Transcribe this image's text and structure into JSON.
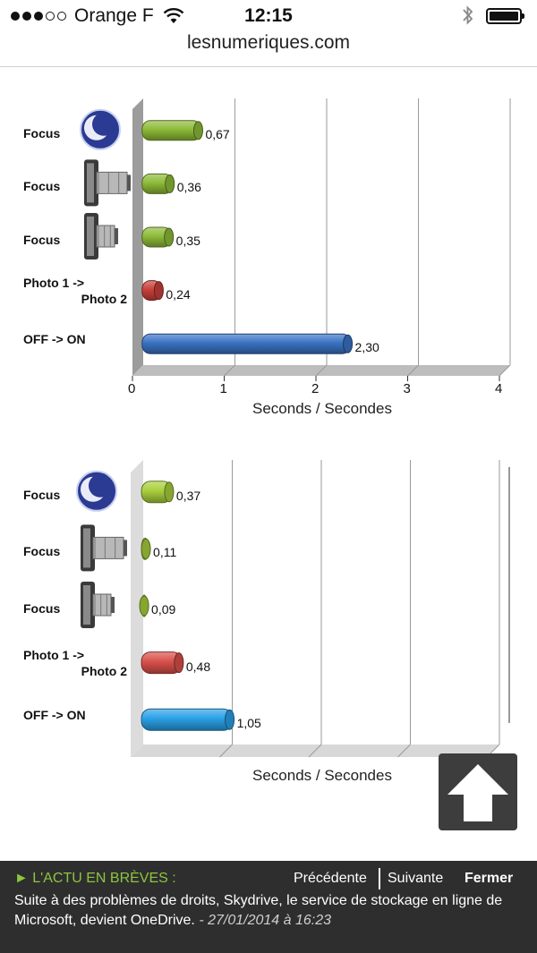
{
  "status_bar": {
    "carrier": "Orange F",
    "time": "12:15",
    "url": "lesnumeriques.com"
  },
  "chart_data": [
    {
      "type": "bar",
      "orientation": "horizontal",
      "title": "",
      "xlabel": "Seconds / Secondes",
      "ylabel": "",
      "xlim": [
        0,
        4
      ],
      "x_ticks": [
        "0",
        "1",
        "2",
        "3",
        "4"
      ],
      "grid": true,
      "categories": [
        {
          "label": "Focus",
          "icon": "moon-icon"
        },
        {
          "label": "Focus",
          "icon": "camera-zoom-tele-icon"
        },
        {
          "label": "Focus",
          "icon": "camera-zoom-wide-icon"
        },
        {
          "label": "Photo 1 ->",
          "label2": "Photo 2",
          "icon": ""
        },
        {
          "label": "OFF -> ON",
          "icon": ""
        }
      ],
      "values": [
        0.67,
        0.36,
        0.35,
        0.24,
        2.3
      ],
      "value_labels": [
        "0,67",
        "0,36",
        "0,35",
        "0,24",
        "2,30"
      ],
      "colors": [
        "#8dbb38",
        "#8dbb38",
        "#8dbb38",
        "#c9403a",
        "#3a73c4"
      ]
    },
    {
      "type": "bar",
      "orientation": "horizontal",
      "title": "",
      "xlabel": "Seconds / Secondes",
      "ylabel": "",
      "xlim": [
        0,
        4
      ],
      "x_ticks": [],
      "grid": true,
      "categories": [
        {
          "label": "Focus",
          "icon": "moon-icon"
        },
        {
          "label": "Focus",
          "icon": "camera-zoom-tele-icon"
        },
        {
          "label": "Focus",
          "icon": "camera-zoom-wide-icon"
        },
        {
          "label": "Photo 1 ->",
          "label2": "Photo 2",
          "icon": ""
        },
        {
          "label": "OFF -> ON",
          "icon": ""
        }
      ],
      "values": [
        0.37,
        0.11,
        0.09,
        0.48,
        1.05
      ],
      "value_labels": [
        "0,37",
        "0,11",
        "0,09",
        "0,48",
        "1,05"
      ],
      "colors": [
        "#a9cf3c",
        "#a9cf3c",
        "#a9cf3c",
        "#d9504a",
        "#2aa0e6"
      ]
    }
  ],
  "news": {
    "kicker": "► L'ACTU EN BRÈVES :",
    "prev": "Précédente",
    "next": "Suivante",
    "close": "Fermer",
    "text": "Suite à des problèmes de droits, Skydrive, le service de stockage en ligne de Microsoft, devient OneDrive.",
    "date": "- 27/01/2014 à 16:23"
  },
  "scroll_top": {
    "icon": "arrow-up-icon"
  }
}
